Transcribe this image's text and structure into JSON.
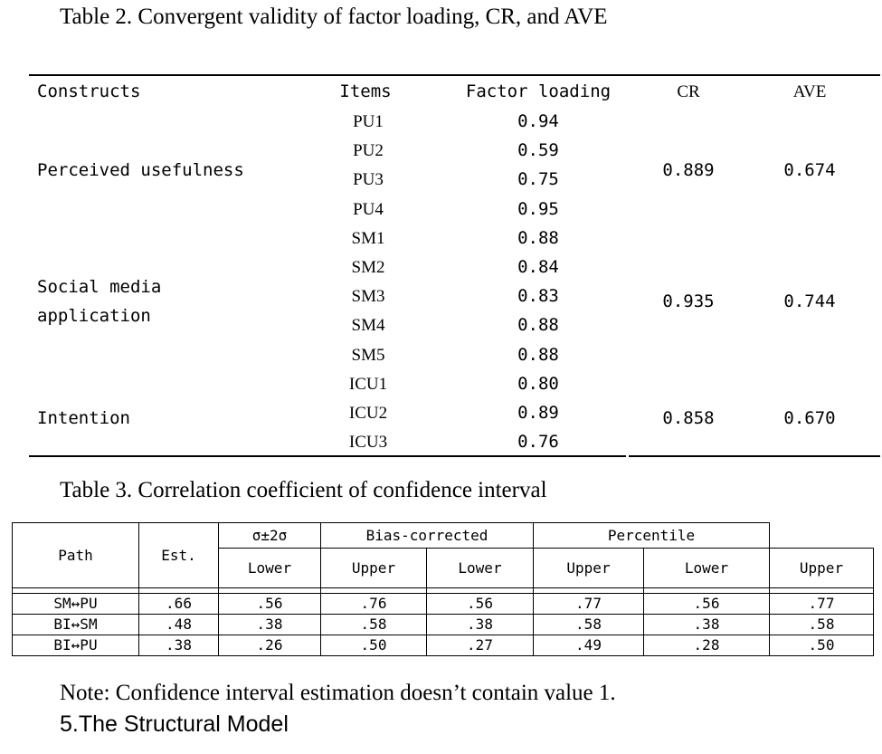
{
  "table2": {
    "caption": "Table 2. Convergent validity of factor loading, CR, and AVE",
    "headers": {
      "constructs": "Constructs",
      "items": "Items",
      "loading": "Factor loading",
      "cr": "CR",
      "ave": "AVE"
    },
    "groups": [
      {
        "construct": [
          "Perceived usefulness"
        ],
        "cr": "0.889",
        "ave": "0.674",
        "items": [
          {
            "item": "PU1",
            "loading": "0.94"
          },
          {
            "item": "PU2",
            "loading": "0.59"
          },
          {
            "item": "PU3",
            "loading": "0.75"
          },
          {
            "item": "PU4",
            "loading": "0.95"
          }
        ]
      },
      {
        "construct": [
          "Social media",
          "application"
        ],
        "cr": "0.935",
        "ave": "0.744",
        "items": [
          {
            "item": "SM1",
            "loading": "0.88"
          },
          {
            "item": "SM2",
            "loading": "0.84"
          },
          {
            "item": "SM3",
            "loading": "0.83"
          },
          {
            "item": "SM4",
            "loading": "0.88"
          },
          {
            "item": "SM5",
            "loading": "0.88"
          }
        ]
      },
      {
        "construct": [
          "Intention"
        ],
        "cr": "0.858",
        "ave": "0.670",
        "items": [
          {
            "item": "ICU1",
            "loading": "0.80"
          },
          {
            "item": "ICU2",
            "loading": "0.89"
          },
          {
            "item": "ICU3",
            "loading": "0.76"
          }
        ]
      }
    ]
  },
  "table3": {
    "caption": "Table 3. Correlation coefficient of confidence interval",
    "headers": {
      "path": "Path",
      "est": "Est.",
      "group1": "σ±2σ",
      "group2": "Bias-corrected",
      "group3": "Percentile",
      "lower": "Lower",
      "upper": "Upper"
    },
    "rows": [
      {
        "path": "SM↔PU",
        "est": ".66",
        "values": [
          ".56",
          ".76",
          ".56",
          ".77",
          ".56",
          ".77"
        ]
      },
      {
        "path": "BI↔SM",
        "est": ".48",
        "values": [
          ".38",
          ".58",
          ".38",
          ".58",
          ".38",
          ".58"
        ]
      },
      {
        "path": "BI↔PU",
        "est": ".38",
        "values": [
          ".26",
          ".50",
          ".27",
          ".49",
          ".28",
          ".50"
        ]
      }
    ]
  },
  "note": "Note: Confidence interval estimation doesn’t contain value 1.",
  "section_heading": "5.The Structural Model"
}
